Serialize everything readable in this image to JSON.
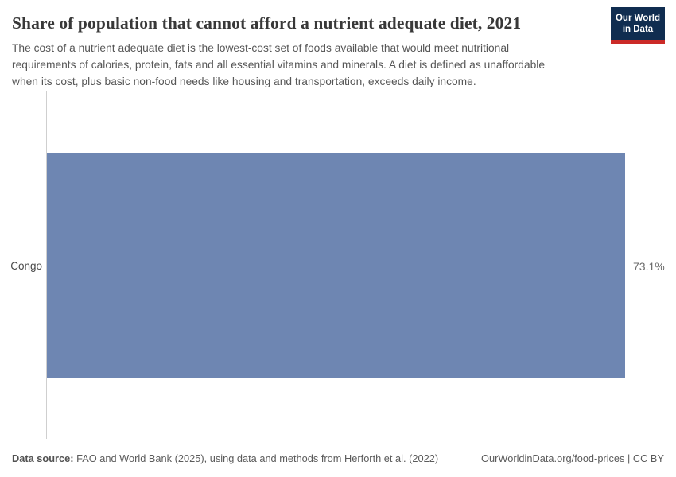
{
  "header": {
    "title": "Share of population that cannot afford a nutrient adequate diet, 2021",
    "subtitle_lines": [
      "The cost of a nutrient adequate diet is the lowest-cost set of foods available that would meet nutritional",
      "requirements of calories, protein, fats and all essential vitamins and minerals. A diet is defined as unaffordable",
      "when its cost, plus basic non-food needs like housing and transportation, exceeds daily income."
    ],
    "logo": {
      "line1": "Our World",
      "line2": "in Data"
    }
  },
  "chart_data": {
    "type": "bar",
    "orientation": "horizontal",
    "title": "Share of population that cannot afford a nutrient adequate diet, 2021",
    "categories": [
      "Congo"
    ],
    "values": [
      73.1
    ],
    "value_labels": [
      "73.1%"
    ],
    "value_suffix": "%",
    "xlabel": "",
    "ylabel": "",
    "xlim": [
      0,
      73.1
    ],
    "grid": false,
    "legend": false,
    "bar_color": "#6e86b2"
  },
  "footer": {
    "source_label": "Data source:",
    "source_text": " FAO and World Bank (2025), using data and methods from Herforth et al. (2022)",
    "attribution": "OurWorldinData.org/food-prices | CC BY"
  },
  "colors": {
    "bar": "#6e86b2",
    "axis_line": "#cfcfcf",
    "logo_bg": "#102d50",
    "logo_accent": "#cb2a27",
    "title_text": "#383838",
    "muted_text": "#575757"
  }
}
